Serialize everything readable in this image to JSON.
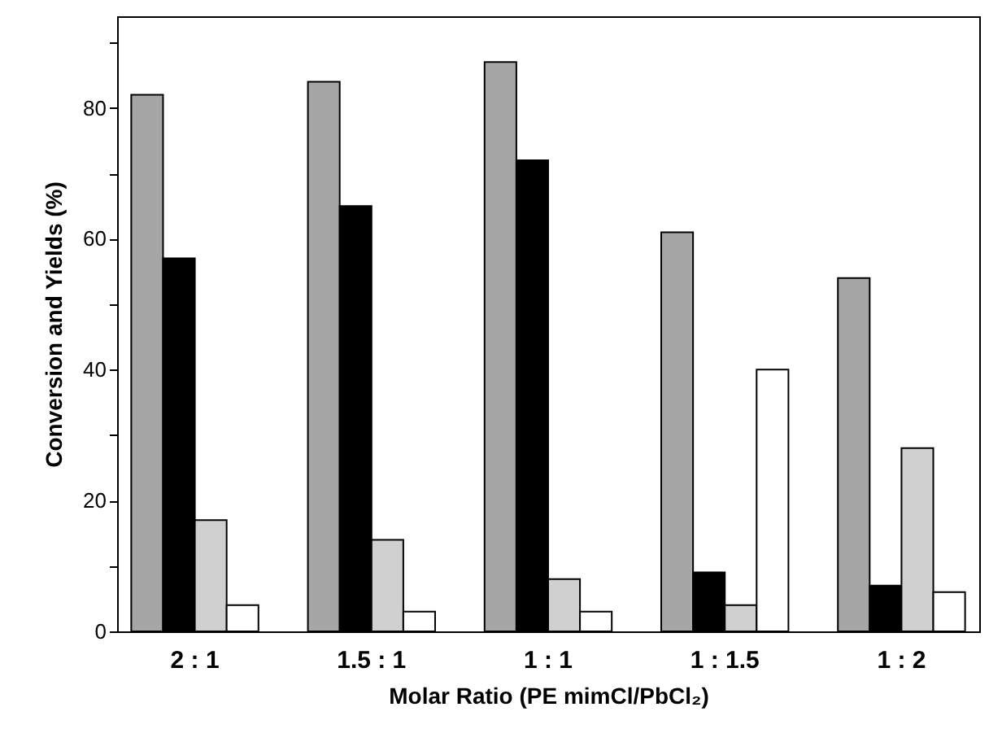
{
  "chart_data": {
    "type": "bar",
    "xlabel": "Molar Ratio (PE mimCl/PbCl₂)",
    "ylabel": "Conversion and Yields (%)",
    "categories": [
      "2 : 1",
      "1.5 : 1",
      "1 : 1",
      "1 : 1.5",
      "1 : 2"
    ],
    "series": [
      {
        "color": "#a6a6a6",
        "values": [
          82,
          84,
          87,
          61,
          54
        ]
      },
      {
        "color": "#000000",
        "values": [
          57,
          65,
          72,
          9,
          7
        ]
      },
      {
        "color": "#d0d0d0",
        "values": [
          17,
          14,
          8,
          4,
          28
        ]
      },
      {
        "color": "#ffffff",
        "values": [
          4,
          3,
          3,
          40,
          6
        ]
      }
    ],
    "ylim": [
      0,
      94
    ],
    "yticks": [
      0,
      {
        "value": 10,
        "label": null
      },
      20,
      {
        "value": 30,
        "label": null
      },
      40,
      {
        "value": 50,
        "label": null
      },
      60,
      {
        "value": 70,
        "label": null
      },
      80,
      {
        "value": 90,
        "label": null
      }
    ],
    "grid": false
  }
}
